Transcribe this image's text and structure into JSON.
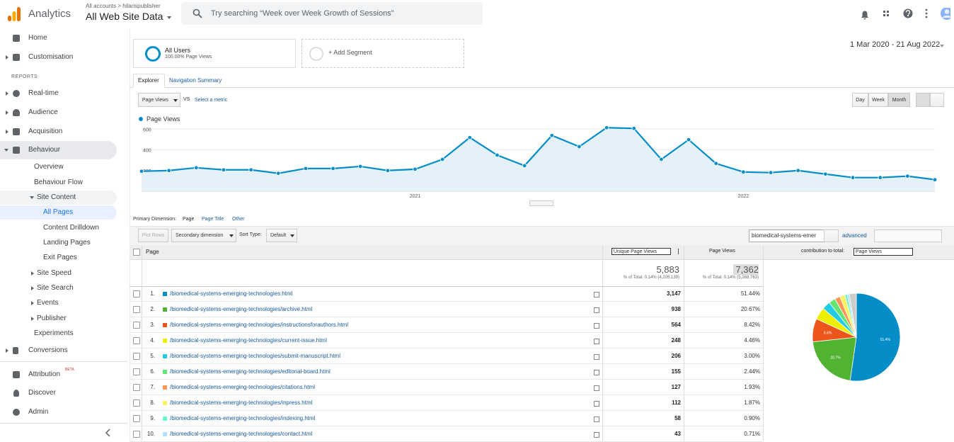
{
  "header": {
    "product": "Analytics",
    "breadcrumb": "All accounts > hilarispublisher",
    "property": "All Web Site Data",
    "search_placeholder": "Try searching “Week over Week Growth of Sessions”"
  },
  "sidebar": {
    "home": "Home",
    "customisation": "Customisation",
    "reports_heading": "REPORTS",
    "realtime": "Real-time",
    "audience": "Audience",
    "acquisition": "Acquisition",
    "behaviour": "Behaviour",
    "overview": "Overview",
    "behaviour_flow": "Behaviour Flow",
    "site_content": "Site Content",
    "all_pages": "All Pages",
    "content_drilldown": "Content Drilldown",
    "landing_pages": "Landing Pages",
    "exit_pages": "Exit Pages",
    "site_speed": "Site Speed",
    "site_search": "Site Search",
    "events": "Events",
    "publisher": "Publisher",
    "experiments": "Experiments",
    "conversions": "Conversions",
    "attribution": "Attribution",
    "attribution_badge": "BETA",
    "discover": "Discover",
    "admin": "Admin"
  },
  "segments": {
    "active_name": "All Users",
    "active_detail": "100.00% Page Views",
    "add": "+ Add Segment",
    "date_range": "1 Mar 2020 - 21 Aug 2022"
  },
  "tabs": [
    "Explorer",
    "Navigation Summary"
  ],
  "chart_controls": {
    "metric": "Page Views",
    "vs": "VS",
    "select_metric": "Select a metric",
    "periods": [
      "Day",
      "Week",
      "Month"
    ]
  },
  "trend_chart": {
    "type": "line",
    "categories": [
      null,
      null,
      null,
      null,
      null,
      null,
      null,
      null,
      null,
      null,
      "2021",
      null,
      null,
      null,
      null,
      null,
      null,
      null,
      null,
      null,
      null,
      null,
      "2022",
      null,
      null,
      null,
      null,
      null,
      null,
      null
    ],
    "series": [
      {
        "name": "Page Views",
        "color": "#058dc7",
        "values": [
          193,
          200,
          227,
          207,
          207,
          173,
          220,
          220,
          240,
          200,
          213,
          308,
          519,
          349,
          247,
          539,
          431,
          614,
          607,
          308,
          498,
          268,
          186,
          180,
          200,
          166,
          132,
          132,
          146,
          112
        ]
      }
    ],
    "ylim": [
      0,
      650
    ],
    "yticks": [
      200,
      400,
      600
    ],
    "grid": true,
    "area_fill": "#e5f1f8"
  },
  "table_controls": {
    "primary_dimension_label": "Primary Dimension:",
    "dimensions": [
      "Page",
      "Page Title",
      "Other"
    ],
    "plot_rows": "Plot Rows",
    "secondary_dimension": "Secondary dimension",
    "sort_type_label": "Sort Type:",
    "sort_type": "Default",
    "search_value": "biomedical-systems-emer",
    "advanced": "advanced"
  },
  "table": {
    "columns": [
      "Page",
      "Unique Page Views",
      "Page Views",
      "contribution to total:"
    ],
    "contribution_metric": "Page Views",
    "totals": {
      "unique_page_views": "5,883",
      "unique_page_views_note": "% of Total: 0.14% (4,205,139)",
      "page_views": "7,362",
      "page_views_note": "% of Total: 0.14% (5,268,763)"
    },
    "rows": [
      {
        "rank": "1.",
        "page": "/biomedical-systems-emerging-technologies.html",
        "unique_page_views": "3,147",
        "page_views_share": "51.44%"
      },
      {
        "rank": "2.",
        "page": "/biomedical-systems-emerging-technologies/archive.html",
        "unique_page_views": "938",
        "page_views_share": "20.67%"
      },
      {
        "rank": "3.",
        "page": "/biomedical-systems-emerging-technologies/instructionsforauthors.html",
        "unique_page_views": "564",
        "page_views_share": "8.42%"
      },
      {
        "rank": "4.",
        "page": "/biomedical-systems-emerging-technologies/current-issue.html",
        "unique_page_views": "248",
        "page_views_share": "4.46%"
      },
      {
        "rank": "5.",
        "page": "/biomedical-systems-emerging-technologies/submit-manuscript.html",
        "unique_page_views": "206",
        "page_views_share": "3.00%"
      },
      {
        "rank": "6.",
        "page": "/biomedical-systems-emerging-technologies/editorial-board.html",
        "unique_page_views": "155",
        "page_views_share": "2.44%"
      },
      {
        "rank": "7.",
        "page": "/biomedical-systems-emerging-technologies/citations.html",
        "unique_page_views": "127",
        "page_views_share": "1.93%"
      },
      {
        "rank": "8.",
        "page": "/biomedical-systems-emerging-technologies/inpress.html",
        "unique_page_views": "112",
        "page_views_share": "1.87%"
      },
      {
        "rank": "9.",
        "page": "/biomedical-systems-emerging-technologies/indexing.html",
        "unique_page_views": "58",
        "page_views_share": "0.90%"
      },
      {
        "rank": "10.",
        "page": "/biomedical-systems-emerging-technologies/contact.html",
        "unique_page_views": "43",
        "page_views_share": "0.71%"
      }
    ]
  },
  "contribution_chart": {
    "type": "pie",
    "values": [
      51.44,
      20.67,
      8.42,
      4.46,
      3.0,
      2.44,
      1.93,
      1.87,
      0.9,
      0.71,
      2.57
    ],
    "value_labels": [
      "51.4%",
      "20.7%",
      "8.4%",
      null,
      null,
      null,
      null,
      null,
      null,
      null,
      null
    ],
    "colors": [
      "#058dc7",
      "#50b432",
      "#ed561b",
      "#edef00",
      "#24cbe5",
      "#64e572",
      "#ff9655",
      "#fff263",
      "#6af9c4",
      "#b2deff",
      "#cccccc"
    ]
  }
}
